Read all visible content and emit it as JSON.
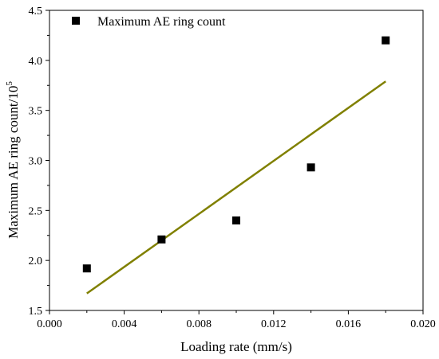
{
  "chart_data": {
    "type": "scatter",
    "title": "",
    "xlabel": "Loading rate (mm/s)",
    "ylabel": {
      "text": "Maximum AE ring count/10",
      "superscript": "5"
    },
    "xlim": [
      0.0,
      0.02
    ],
    "ylim": [
      1.5,
      4.5
    ],
    "x_ticks": [
      "0.000",
      "0.004",
      "0.008",
      "0.012",
      "0.016",
      "0.020"
    ],
    "y_ticks": [
      "1.5",
      "2.0",
      "2.5",
      "3.0",
      "3.5",
      "4.0",
      "4.5"
    ],
    "legend": {
      "position": "top-left",
      "entries": [
        "Maximum AE ring count"
      ]
    },
    "grid": false,
    "series": [
      {
        "name": "Maximum AE ring count",
        "marker": "square",
        "color": "#000000",
        "points": [
          {
            "x": 0.002,
            "y": 1.92
          },
          {
            "x": 0.006,
            "y": 2.21
          },
          {
            "x": 0.01,
            "y": 2.4
          },
          {
            "x": 0.014,
            "y": 2.93
          },
          {
            "x": 0.018,
            "y": 4.2
          }
        ]
      }
    ],
    "fit_line": {
      "color": "#808000",
      "points": [
        {
          "x": 0.002,
          "y": 1.67
        },
        {
          "x": 0.018,
          "y": 3.79
        }
      ]
    }
  }
}
